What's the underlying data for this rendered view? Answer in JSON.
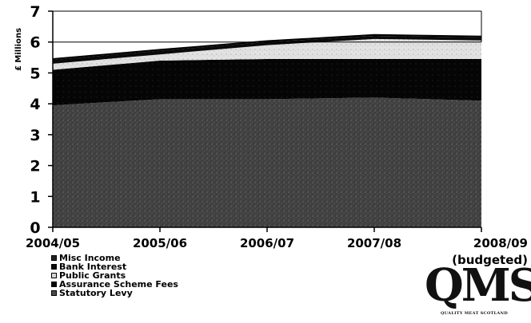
{
  "chart_data": {
    "type": "area",
    "stacked": true,
    "ylabel": "£ Millions",
    "xlabel": "",
    "title": "",
    "ylim": [
      0,
      7
    ],
    "yticks": [
      "0",
      "1",
      "2",
      "3",
      "4",
      "5",
      "6",
      "7"
    ],
    "categories": [
      "2004/05",
      "2005/06",
      "2006/07",
      "2007/08",
      "2008/09 (budgeted)"
    ],
    "category_labels": [
      [
        "2004/05"
      ],
      [
        "2005/06"
      ],
      [
        "2006/07"
      ],
      [
        "2007/08"
      ],
      [
        "2008/09",
        "(budgeted)"
      ]
    ],
    "series": [
      {
        "name": "Statutory Levy",
        "values": [
          3.95,
          4.15,
          4.15,
          4.2,
          4.1
        ],
        "color": "#4a4a4a"
      },
      {
        "name": "Assurance Scheme Fees",
        "values": [
          1.15,
          1.25,
          1.3,
          1.25,
          1.35
        ],
        "color": "#050505"
      },
      {
        "name": "Public Grants",
        "values": [
          0.2,
          0.2,
          0.45,
          0.65,
          0.6
        ],
        "color": "#d6d6d6"
      },
      {
        "name": "Bank Interest",
        "values": [
          0.12,
          0.12,
          0.1,
          0.1,
          0.1
        ],
        "color": "#0a0a0a"
      },
      {
        "name": "Misc Income",
        "values": [
          0.03,
          0.03,
          0.03,
          0.03,
          0.03
        ],
        "color": "#222222"
      }
    ],
    "legend_order": [
      "Misc Income",
      "Bank Interest",
      "Public Grants",
      "Assurance Scheme Fees",
      "Statutory Levy"
    ],
    "grid": "horizontal lines at 6 and 7",
    "legend_placement": "bottom-left"
  },
  "logo": {
    "main": "QMS",
    "sub": "QUALITY MEAT SCOTLAND"
  }
}
